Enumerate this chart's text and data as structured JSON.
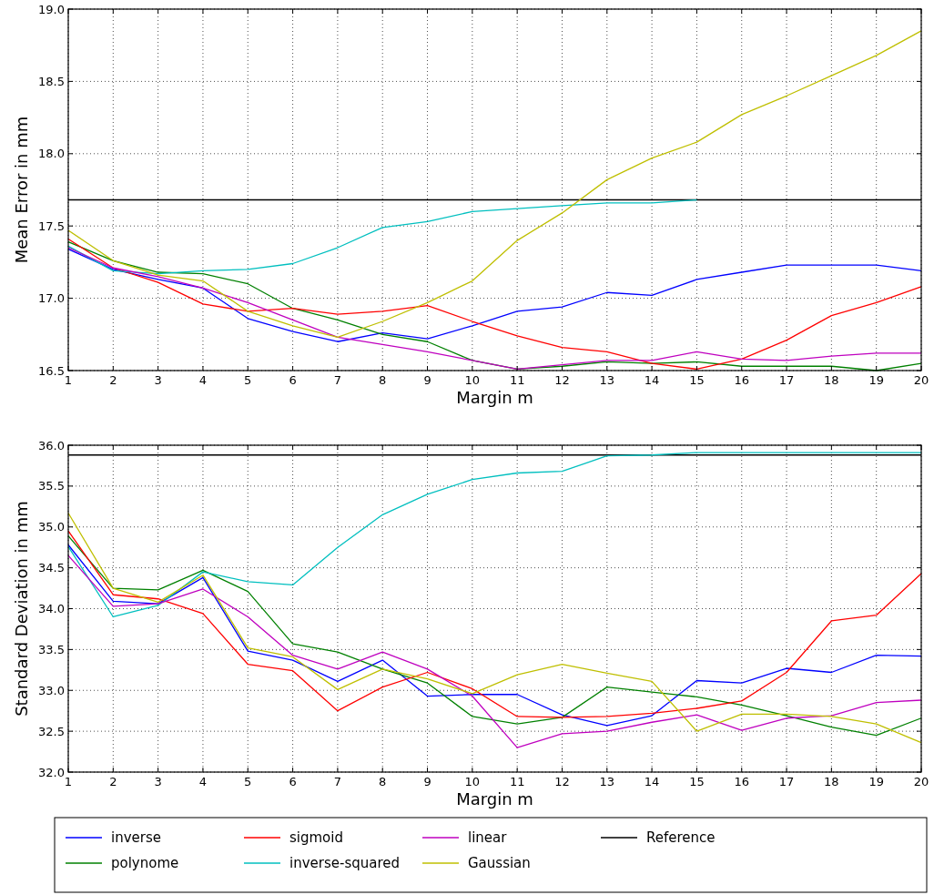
{
  "chart_data": [
    {
      "type": "line",
      "xlabel": "Margin m",
      "ylabel": "Mean Error in mm",
      "x": [
        1,
        2,
        3,
        4,
        5,
        6,
        7,
        8,
        9,
        10,
        11,
        12,
        13,
        14,
        15,
        16,
        17,
        18,
        19,
        20
      ],
      "xlim": [
        1,
        20
      ],
      "xticks": [
        1,
        2,
        3,
        4,
        5,
        6,
        7,
        8,
        9,
        10,
        11,
        12,
        13,
        14,
        15,
        16,
        17,
        18,
        19,
        20
      ],
      "ylim": [
        16.5,
        19.0
      ],
      "yticks": [
        {
          "value": 16.5,
          "label": "16.5"
        },
        {
          "value": 17,
          "label": "17.0"
        },
        {
          "value": 17.5,
          "label": "17.5"
        },
        {
          "value": 18,
          "label": "18.0"
        },
        {
          "value": 18.5,
          "label": "18.5"
        },
        {
          "value": 19,
          "label": "19.0"
        }
      ],
      "grid": true,
      "line_style": "solid",
      "series": [
        {
          "color": "#0000ff",
          "values": [
            17.34,
            17.2,
            17.13,
            17.07,
            16.86,
            16.77,
            16.7,
            16.76,
            16.72,
            16.81,
            16.91,
            16.94,
            17.04,
            17.02,
            17.13,
            17.18,
            17.23,
            17.23,
            17.23,
            17.19
          ]
        },
        {
          "color": "#008000",
          "values": [
            17.39,
            17.26,
            17.18,
            17.17,
            17.1,
            16.93,
            16.85,
            16.75,
            16.7,
            16.57,
            16.51,
            16.53,
            16.56,
            16.55,
            16.56,
            16.53,
            16.53,
            16.53,
            16.5,
            16.55
          ]
        },
        {
          "color": "#ff0000",
          "values": [
            17.41,
            17.21,
            17.11,
            16.96,
            16.91,
            16.93,
            16.89,
            16.91,
            16.95,
            16.84,
            16.74,
            16.66,
            16.63,
            16.55,
            16.51,
            16.58,
            16.71,
            16.88,
            16.97,
            17.08
          ]
        },
        {
          "color": "#00bfbf",
          "values": [
            17.36,
            17.19,
            17.17,
            17.19,
            17.2,
            17.24,
            17.35,
            17.49,
            17.53,
            17.6,
            17.62,
            17.64,
            17.66,
            17.66,
            17.68,
            null,
            null,
            null,
            null,
            null
          ]
        },
        {
          "color": "#bf00bf",
          "values": [
            17.35,
            17.21,
            17.15,
            17.07,
            16.97,
            16.85,
            16.73,
            16.68,
            16.63,
            16.57,
            16.51,
            16.54,
            16.57,
            16.57,
            16.63,
            16.58,
            16.57,
            16.6,
            16.62,
            16.62
          ]
        },
        {
          "color": "#bfbf00",
          "values": [
            17.47,
            17.26,
            17.16,
            17.12,
            16.91,
            16.81,
            16.73,
            16.84,
            16.97,
            17.12,
            17.4,
            17.59,
            17.82,
            17.97,
            18.08,
            18.27,
            18.4,
            18.54,
            18.68,
            18.85
          ]
        }
      ],
      "ref_lines": [
        {
          "axis": "y",
          "value": 17.68,
          "color": "#000000"
        }
      ]
    },
    {
      "type": "line",
      "xlabel": "Margin m",
      "ylabel": "Standard Deviation in mm",
      "x": [
        1,
        2,
        3,
        4,
        5,
        6,
        7,
        8,
        9,
        10,
        11,
        12,
        13,
        14,
        15,
        16,
        17,
        18,
        19,
        20
      ],
      "xlim": [
        1,
        20
      ],
      "xticks": [
        1,
        2,
        3,
        4,
        5,
        6,
        7,
        8,
        9,
        10,
        11,
        12,
        13,
        14,
        15,
        16,
        17,
        18,
        19,
        20
      ],
      "ylim": [
        32.0,
        36.0
      ],
      "yticks": [
        {
          "value": 32,
          "label": "32.0"
        },
        {
          "value": 32.5,
          "label": "32.5"
        },
        {
          "value": 33,
          "label": "33.0"
        },
        {
          "value": 33.5,
          "label": "33.5"
        },
        {
          "value": 34,
          "label": "34.0"
        },
        {
          "value": 34.5,
          "label": "34.5"
        },
        {
          "value": 35,
          "label": "35.0"
        },
        {
          "value": 35.5,
          "label": "35.5"
        },
        {
          "value": 36,
          "label": "36.0"
        }
      ],
      "grid": true,
      "line_style": "solid",
      "legend": "bottom",
      "series": [
        {
          "name": "inverse",
          "color": "#0000ff",
          "values": [
            34.78,
            34.09,
            34.06,
            34.38,
            33.48,
            33.37,
            33.11,
            33.37,
            32.93,
            32.95,
            32.95,
            32.7,
            32.57,
            32.69,
            33.12,
            33.09,
            33.27,
            33.22,
            33.43,
            33.42
          ]
        },
        {
          "name": "polynome",
          "color": "#008000",
          "values": [
            34.89,
            34.25,
            34.23,
            34.47,
            34.21,
            33.57,
            33.47,
            33.26,
            33.09,
            32.68,
            32.59,
            32.67,
            33.04,
            32.98,
            32.92,
            32.82,
            32.69,
            32.55,
            32.45,
            32.66
          ]
        },
        {
          "name": "sigmoid",
          "color": "#ff0000",
          "values": [
            34.95,
            34.17,
            34.12,
            33.94,
            33.32,
            33.24,
            32.75,
            33.04,
            33.22,
            33.02,
            32.68,
            32.67,
            32.68,
            32.72,
            32.78,
            32.87,
            33.22,
            33.85,
            33.92,
            34.43
          ]
        },
        {
          "name": "inverse-squared",
          "color": "#00bfbf",
          "values": [
            34.76,
            33.9,
            34.04,
            34.45,
            34.33,
            34.29,
            34.75,
            35.15,
            35.4,
            35.58,
            35.66,
            35.68,
            35.87,
            35.88,
            35.91,
            35.91,
            35.91,
            35.91,
            35.91,
            35.91
          ]
        },
        {
          "name": "linear",
          "color": "#bf00bf",
          "values": [
            34.65,
            34.03,
            34.06,
            34.24,
            33.9,
            33.43,
            33.26,
            33.47,
            33.26,
            32.93,
            32.3,
            32.47,
            32.5,
            32.61,
            32.7,
            32.51,
            32.66,
            32.69,
            32.85,
            32.88
          ]
        },
        {
          "name": "Gaussian",
          "color": "#bfbf00",
          "values": [
            35.17,
            34.25,
            34.08,
            34.41,
            33.52,
            33.41,
            33.01,
            33.26,
            33.14,
            32.96,
            33.19,
            33.32,
            33.21,
            33.11,
            32.5,
            32.71,
            32.71,
            32.68,
            32.59,
            32.36
          ]
        }
      ],
      "ref_lines": [
        {
          "axis": "y",
          "value": 35.88,
          "label": "Reference",
          "color": "#000000"
        }
      ]
    }
  ]
}
